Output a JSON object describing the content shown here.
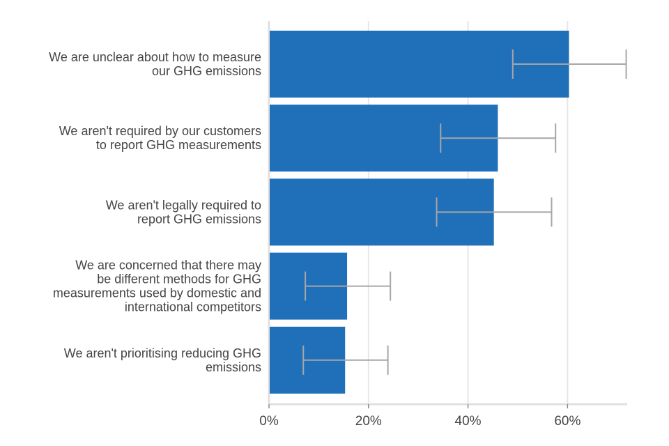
{
  "chart_data": {
    "type": "bar",
    "orientation": "horizontal",
    "title": "",
    "xlabel": "",
    "ylabel": "",
    "xlim": [
      0,
      72
    ],
    "grid": true,
    "colors": {
      "bar": "#1f6fb9",
      "error_bar": "#a6a6a6",
      "grid": "#e6e6e6",
      "axis": "#e0e0e0",
      "text": "#454545"
    },
    "ticks": [
      {
        "value": 0,
        "label": "0%"
      },
      {
        "value": 20,
        "label": "20%"
      },
      {
        "value": 40,
        "label": "40%"
      },
      {
        "value": 60,
        "label": "60%"
      }
    ],
    "categories": [
      [
        "We are unclear about how to measure",
        "our GHG emissions"
      ],
      [
        "We aren't required by our customers",
        "to report GHG measurements"
      ],
      [
        "We aren't legally required to",
        "report GHG emissions"
      ],
      [
        "We are concerned that there may",
        "be different methods for GHG",
        "measurements used by domestic and",
        "international competitors"
      ],
      [
        "We aren't prioritising reducing GHG",
        "emissions"
      ]
    ],
    "values": [
      60.3,
      46.0,
      45.2,
      15.7,
      15.3
    ],
    "error_low": [
      49.0,
      34.5,
      33.7,
      7.3,
      6.9
    ],
    "error_high": [
      71.8,
      57.6,
      56.8,
      24.4,
      23.9
    ]
  }
}
